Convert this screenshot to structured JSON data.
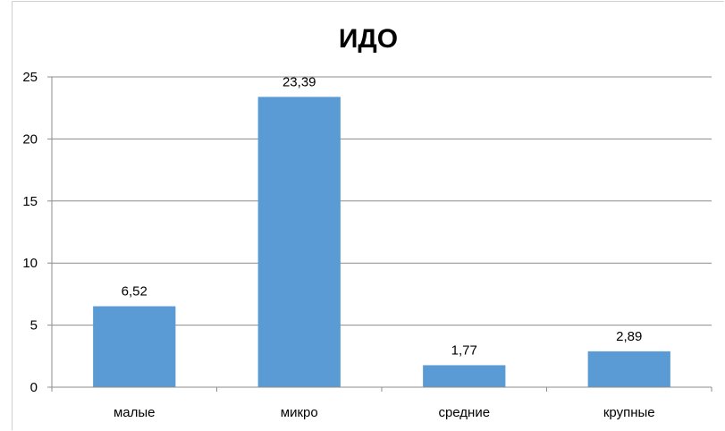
{
  "chart_data": {
    "type": "bar",
    "title": "ИДО",
    "xlabel": "",
    "ylabel": "",
    "categories": [
      "малые",
      "микро",
      "средние",
      "крупные"
    ],
    "values": [
      6.52,
      23.39,
      1.77,
      2.89
    ],
    "data_labels": [
      "6,52",
      "23,39",
      "1,77",
      "2,89"
    ],
    "ylim": [
      0,
      25
    ],
    "yticks": [
      0,
      5,
      10,
      15,
      20,
      25
    ],
    "ytick_labels": [
      "0",
      "5",
      "10",
      "15",
      "20",
      "25"
    ],
    "grid": true,
    "legend": "none",
    "bar_color": "#5b9bd5",
    "grid_color": "#8c8c8c",
    "axis_color": "#8c8c8c"
  }
}
